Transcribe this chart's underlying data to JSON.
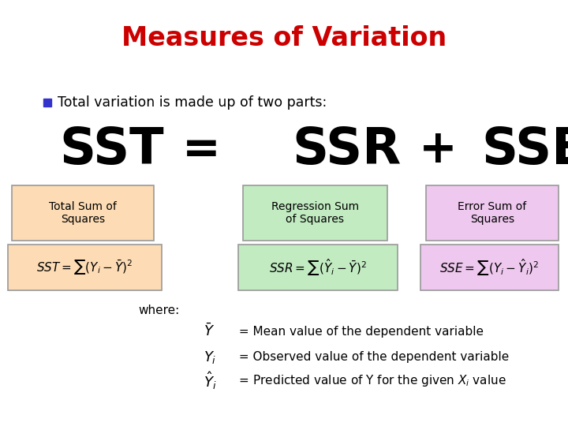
{
  "title": "Measures of Variation",
  "title_color": "#CC0000",
  "title_fontsize": 24,
  "background_color": "#FFFFFF",
  "bullet_text": "Total variation is made up of two parts:",
  "bullet_color": "#3333CC",
  "box1_label": "Total Sum of\nSquares",
  "box2_label": "Regression Sum\nof Squares",
  "box3_label": "Error Sum of\nSquares",
  "box1_color": "#FDDCB5",
  "box2_color": "#C2EBC2",
  "box3_color": "#EEC8EE",
  "where_text": "where:",
  "def1_symbol": "$\\bar{Y}$",
  "def1_text": " = Mean value of the dependent variable",
  "def2_symbol": "$Y_i$",
  "def2_text": " = Observed value of the dependent variable",
  "def3_symbol": "$\\hat{Y}_i$",
  "def3_text": " = Predicted value of Y for the given $X_i$ value"
}
